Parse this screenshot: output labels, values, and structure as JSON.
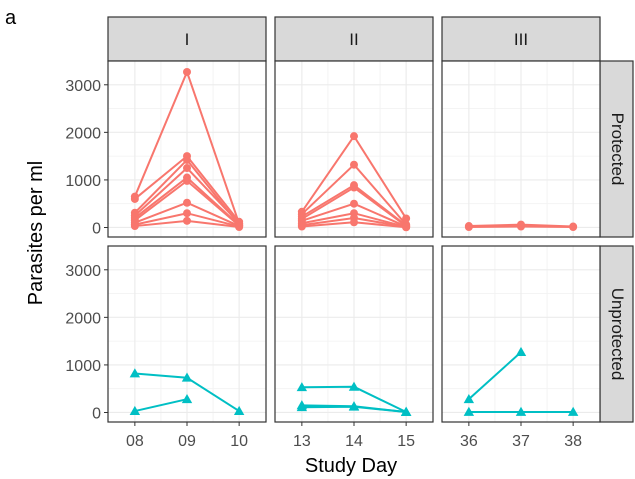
{
  "chart_data": {
    "type": "line",
    "panel_letter": "a",
    "xlabel": "Study Day",
    "ylabel": "Parasites per ml",
    "ylim": [
      -200,
      3500
    ],
    "yticks": [
      0,
      1000,
      2000,
      3000
    ],
    "grid": true,
    "columns": [
      {
        "label": "I",
        "days": [
          "08",
          "09",
          "10"
        ]
      },
      {
        "label": "II",
        "days": [
          "13",
          "14",
          "15"
        ]
      },
      {
        "label": "III",
        "days": [
          "36",
          "37",
          "38"
        ]
      }
    ],
    "rows": [
      {
        "label": "Protected",
        "color": "#f8766d",
        "marker": "circle"
      },
      {
        "label": "Unprotected",
        "color": "#00bfc4",
        "marker": "triangle"
      }
    ],
    "panels": [
      {
        "row": "Protected",
        "column": "I",
        "series": [
          {
            "x": [
              "08",
              "09",
              "10"
            ],
            "y": [
              650,
              3270,
              80
            ]
          },
          {
            "x": [
              "08",
              "09",
              "10"
            ],
            "y": [
              600,
              1500,
              120
            ]
          },
          {
            "x": [
              "08",
              "09",
              "10"
            ],
            "y": [
              310,
              1420,
              60
            ]
          },
          {
            "x": [
              "08",
              "09",
              "10"
            ],
            "y": [
              250,
              1250,
              90
            ]
          },
          {
            "x": [
              "08",
              "09",
              "10"
            ],
            "y": [
              200,
              1050,
              50
            ]
          },
          {
            "x": [
              "08",
              "09",
              "10"
            ],
            "y": [
              150,
              980,
              40
            ]
          },
          {
            "x": [
              "08",
              "09",
              "10"
            ],
            "y": [
              100,
              520,
              30
            ]
          },
          {
            "x": [
              "08",
              "09",
              "10"
            ],
            "y": [
              60,
              300,
              20
            ]
          },
          {
            "x": [
              "08",
              "09",
              "10"
            ],
            "y": [
              30,
              140,
              10
            ]
          }
        ]
      },
      {
        "row": "Protected",
        "column": "II",
        "series": [
          {
            "x": [
              "13",
              "14",
              "15"
            ],
            "y": [
              330,
              1920,
              190
            ]
          },
          {
            "x": [
              "13",
              "14",
              "15"
            ],
            "y": [
              280,
              1320,
              60
            ]
          },
          {
            "x": [
              "13",
              "14",
              "15"
            ],
            "y": [
              230,
              890,
              40
            ]
          },
          {
            "x": [
              "13",
              "14",
              "15"
            ],
            "y": [
              180,
              840,
              30
            ]
          },
          {
            "x": [
              "13",
              "14",
              "15"
            ],
            "y": [
              140,
              500,
              20
            ]
          },
          {
            "x": [
              "13",
              "14",
              "15"
            ],
            "y": [
              90,
              300,
              10
            ]
          },
          {
            "x": [
              "13",
              "14",
              "15"
            ],
            "y": [
              50,
              200,
              10
            ]
          },
          {
            "x": [
              "13",
              "14",
              "15"
            ],
            "y": [
              20,
              110,
              5
            ]
          }
        ]
      },
      {
        "row": "Protected",
        "column": "III",
        "series": [
          {
            "x": [
              "36",
              "37",
              "38"
            ],
            "y": [
              30,
              60,
              20
            ]
          },
          {
            "x": [
              "36",
              "37",
              "38"
            ],
            "y": [
              10,
              20,
              10
            ]
          }
        ]
      },
      {
        "row": "Unprotected",
        "column": "I",
        "series": [
          {
            "x": [
              "08",
              "09",
              "10"
            ],
            "y": [
              820,
              730,
              30
            ]
          },
          {
            "x": [
              "08",
              "09",
              "10"
            ],
            "y": [
              30,
              280,
              null
            ]
          }
        ]
      },
      {
        "row": "Unprotected",
        "column": "II",
        "series": [
          {
            "x": [
              "13",
              "14",
              "15"
            ],
            "y": [
              530,
              540,
              10
            ]
          },
          {
            "x": [
              "13",
              "14",
              "15"
            ],
            "y": [
              150,
              130,
              10
            ]
          },
          {
            "x": [
              "13",
              "14",
              "15"
            ],
            "y": [
              110,
              120,
              10
            ]
          }
        ]
      },
      {
        "row": "Unprotected",
        "column": "III",
        "series": [
          {
            "x": [
              "36",
              "37",
              "38"
            ],
            "y": [
              280,
              1270,
              null
            ]
          },
          {
            "x": [
              "36",
              "37",
              "38"
            ],
            "y": [
              10,
              10,
              10
            ]
          }
        ]
      }
    ]
  }
}
